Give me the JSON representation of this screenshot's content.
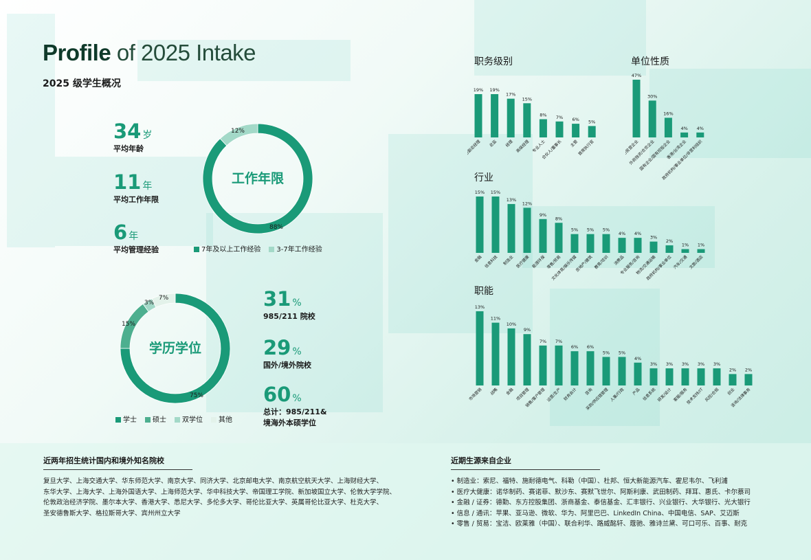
{
  "header": {
    "title_bold": "Profile",
    "title_light": " of 2025 Intake",
    "subtitle": "2025 级学生概况"
  },
  "stats_left": [
    {
      "value": "34",
      "unit": "岁",
      "label": "平均年龄"
    },
    {
      "value": "11",
      "unit": "年",
      "label": "平均工作年限"
    },
    {
      "value": "6",
      "unit": "年",
      "label": "平均管理经验"
    }
  ],
  "stats_right": [
    {
      "value": "31",
      "unit": "%",
      "label": "985/211 院校"
    },
    {
      "value": "29",
      "unit": "%",
      "label": "国外/境外院校"
    },
    {
      "value": "60",
      "unit": "%",
      "label": "总计：985/211&",
      "label2": "境海外本硕学位"
    }
  ],
  "colors": {
    "primary": "#1a9a78",
    "mid": "#4daf8f",
    "light": "#a3d9c8",
    "pale": "#e3f2ea"
  },
  "chart_data": [
    {
      "type": "pie",
      "center_label": "工作年限",
      "series": [
        {
          "name": "7年及以上工作经验",
          "value": 88,
          "label": "88%"
        },
        {
          "name": "3-7年工作经验",
          "value": 12,
          "label": "12%"
        }
      ]
    },
    {
      "type": "pie",
      "center_label": "学历学位",
      "series": [
        {
          "name": "学士",
          "value": 75,
          "label": "75%"
        },
        {
          "name": "硕士",
          "value": 15,
          "label": "15%"
        },
        {
          "name": "双学位",
          "value": 3,
          "label": "3%"
        },
        {
          "name": "其他",
          "value": 7,
          "label": "7%"
        }
      ]
    },
    {
      "type": "bar",
      "title": "职务级别",
      "categories": [
        "总经理/副总经理",
        "总监",
        "经理",
        "高级经理",
        "专业人士",
        "合伙人/董事长",
        "主管",
        "首席执行官"
      ],
      "values": [
        19,
        19,
        17,
        15,
        8,
        7,
        6,
        5
      ],
      "value_labels": [
        "19%",
        "19%",
        "17%",
        "15%",
        "8%",
        "7%",
        "6%",
        "5%"
      ]
    },
    {
      "type": "bar",
      "title": "单位性质",
      "categories": [
        "民营企业/民营企业",
        "外商独资/合资企业",
        "国有企业/国有控股企业",
        "香港/台湾企业",
        "政府机构/事业单位/非营利组织"
      ],
      "values": [
        47,
        30,
        16,
        4,
        4
      ],
      "value_labels": [
        "47%",
        "30%",
        "16%",
        "4%",
        "4%"
      ]
    },
    {
      "type": "bar",
      "title": "行业",
      "categories": [
        "金融",
        "信息科技",
        "制造业",
        "医疗健康",
        "能源环保",
        "零售/贸易",
        "文化体育/娱乐传媒",
        "房地产/建筑",
        "教育/培训",
        "消费品",
        "专业服务/咨询",
        "物流/交通运输",
        "政府机构/事业单位",
        "汽车/交通",
        "文旅/酒店"
      ],
      "values": [
        15,
        15,
        13,
        12,
        9,
        8,
        5,
        5,
        5,
        4,
        4,
        3,
        2,
        1,
        1
      ],
      "value_labels": [
        "15%",
        "15%",
        "13%",
        "12%",
        "9%",
        "8%",
        "5%",
        "5%",
        "5%",
        "4%",
        "4%",
        "3%",
        "2%",
        "1%",
        "1%"
      ]
    },
    {
      "type": "bar",
      "title": "职能",
      "categories": [
        "市场营销",
        "战略",
        "金融",
        "项目管理",
        "销售/客户管理",
        "运营/生产",
        "财务会计",
        "咨询",
        "采购/供应链管理",
        "人事/行政",
        "产品",
        "信息系统",
        "研发/设计",
        "客服/服务",
        "技术支持/IT",
        "风控/合规",
        "创业",
        "咨询/法律事务"
      ],
      "values": [
        13,
        11,
        10,
        9,
        7,
        7,
        6,
        6,
        5,
        5,
        4,
        3,
        3,
        3,
        3,
        3,
        2,
        2
      ],
      "value_labels": [
        "13%",
        "11%",
        "10%",
        "9%",
        "7%",
        "7%",
        "6%",
        "6%",
        "5%",
        "5%",
        "4%",
        "3%",
        "3%",
        "3%",
        "3%",
        "3%",
        "2%",
        "2%"
      ]
    }
  ],
  "footer": {
    "schools_heading": "近两年招生统计国内和境外知名院校",
    "schools_lines": [
      "复旦大学、上海交通大学、华东师范大学、南京大学、同济大学、北京邮电大学、南京航空航天大学、上海财经大学、",
      "东华大学、上海大学、上海外国语大学、上海师范大学、华中科技大学、帝国理工学院、新加坡国立大学、伦敦大学学院、",
      "伦敦政治经济学院、墨尔本大学、香港大学、悉尼大学、多伦多大学、哥伦比亚大学、英属哥伦比亚大学、杜克大学、",
      "圣安德鲁斯大学、格拉斯哥大学、宾州州立大学"
    ],
    "companies_heading": "近期生源来自企业",
    "companies_lines": [
      "• 制造业：索尼、福特、施耐德电气、科勒（中国）、杜邦、恒大新能源汽车、霍尼韦尔、飞利浦",
      "• 医疗大健康：诺华制药、赛诺菲、默沙东、赛默飞世尔、阿斯利康、武田制药、拜耳、惠氏、卡尔蔡司",
      "• 金融 / 证券：德勤、东方控股集团、浙商基金、泰信基金、汇丰银行、兴业银行、大华银行、光大银行",
      "• 信息 / 通讯：苹果、亚马逊、微软、华为、阿里巴巴、LinkedIn China、中国电信、SAP、艾迈斯",
      "• 零售 / 贸易：宝洁、欧莱雅（中国）、联合利华、路威酩轩、蔻驰、雅诗兰黛、可口可乐、百事、耐克"
    ]
  }
}
